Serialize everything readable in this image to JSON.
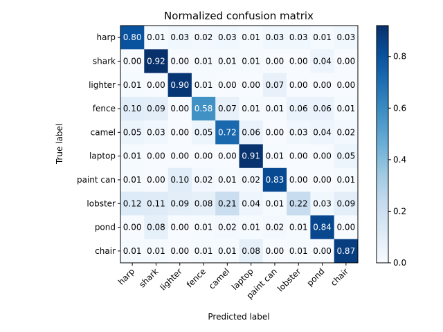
{
  "chart_data": {
    "type": "heatmap",
    "title": "Normalized confusion matrix",
    "xlabel": "Predicted label",
    "ylabel": "True label",
    "row_labels": [
      "harp",
      "shark",
      "lighter",
      "fence",
      "camel",
      "laptop",
      "paint can",
      "lobster",
      "pond",
      "chair"
    ],
    "col_labels": [
      "harp",
      "shark",
      "lighter",
      "fence",
      "camel",
      "laptop",
      "paint can",
      "lobster",
      "pond",
      "chair"
    ],
    "values": [
      [
        0.8,
        0.01,
        0.03,
        0.02,
        0.03,
        0.01,
        0.03,
        0.03,
        0.01,
        0.03
      ],
      [
        0.0,
        0.92,
        0.0,
        0.01,
        0.01,
        0.01,
        0.0,
        0.0,
        0.04,
        0.0
      ],
      [
        0.01,
        0.0,
        0.9,
        0.01,
        0.0,
        0.0,
        0.07,
        0.0,
        0.0,
        0.0
      ],
      [
        0.1,
        0.09,
        0.0,
        0.58,
        0.07,
        0.01,
        0.01,
        0.06,
        0.06,
        0.01
      ],
      [
        0.05,
        0.03,
        0.0,
        0.05,
        0.72,
        0.06,
        0.0,
        0.03,
        0.04,
        0.02
      ],
      [
        0.01,
        0.0,
        0.0,
        0.0,
        0.0,
        0.91,
        0.01,
        0.0,
        0.0,
        0.05
      ],
      [
        0.01,
        0.0,
        0.1,
        0.02,
        0.01,
        0.02,
        0.83,
        0.0,
        0.0,
        0.01
      ],
      [
        0.12,
        0.11,
        0.09,
        0.08,
        0.21,
        0.04,
        0.01,
        0.22,
        0.03,
        0.09
      ],
      [
        0.0,
        0.08,
        0.0,
        0.01,
        0.02,
        0.01,
        0.02,
        0.01,
        0.84,
        0.0
      ],
      [
        0.01,
        0.01,
        0.0,
        0.01,
        0.01,
        0.08,
        0.0,
        0.01,
        0.0,
        0.87
      ]
    ],
    "value_format": "0.00",
    "colormap": "Blues",
    "vmin": 0.0,
    "vmax": 0.92,
    "text_threshold": 0.46,
    "colorbar": {
      "ticks": [
        0.0,
        0.2,
        0.4,
        0.6,
        0.8
      ],
      "tick_labels": [
        "0.0",
        "0.2",
        "0.4",
        "0.6",
        "0.8"
      ]
    }
  }
}
